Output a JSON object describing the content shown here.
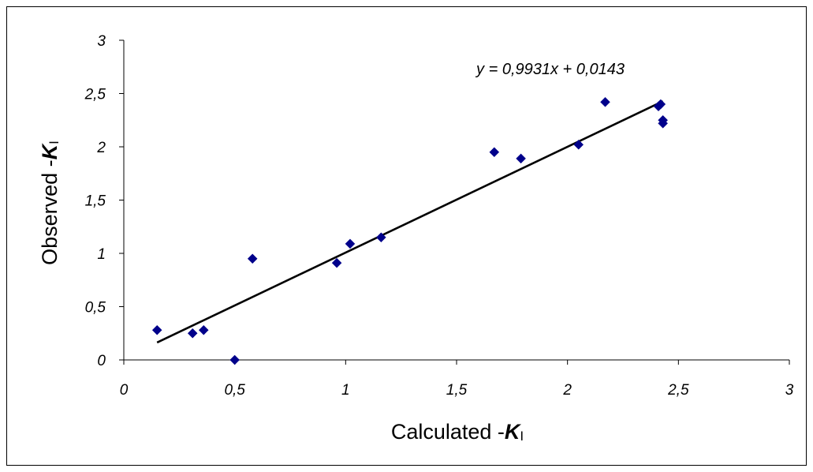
{
  "chart_data": {
    "type": "scatter",
    "xlabel": {
      "prefix": "Calculated -",
      "symbol": "K",
      "subscript": "I"
    },
    "ylabel": {
      "prefix": "Observed -",
      "symbol": "K",
      "subscript": "I"
    },
    "xlim": [
      0,
      3
    ],
    "ylim": [
      0,
      3
    ],
    "x_ticks": [
      "0",
      "0,5",
      "1",
      "1,5",
      "2",
      "2,5",
      "3"
    ],
    "y_ticks": [
      "0",
      "0,5",
      "1",
      "1,5",
      "2",
      "2,5",
      "3"
    ],
    "grid": false,
    "series": [
      {
        "marker": "diamond",
        "color": "#00008B",
        "points": [
          {
            "x": 0.15,
            "y": 0.28
          },
          {
            "x": 0.31,
            "y": 0.25
          },
          {
            "x": 0.36,
            "y": 0.28
          },
          {
            "x": 0.5,
            "y": 0.0
          },
          {
            "x": 0.58,
            "y": 0.95
          },
          {
            "x": 0.96,
            "y": 0.91
          },
          {
            "x": 1.02,
            "y": 1.09
          },
          {
            "x": 1.16,
            "y": 1.15
          },
          {
            "x": 1.67,
            "y": 1.95
          },
          {
            "x": 1.79,
            "y": 1.89
          },
          {
            "x": 2.05,
            "y": 2.02
          },
          {
            "x": 2.17,
            "y": 2.42
          },
          {
            "x": 2.41,
            "y": 2.38
          },
          {
            "x": 2.42,
            "y": 2.4
          },
          {
            "x": 2.43,
            "y": 2.25
          },
          {
            "x": 2.43,
            "y": 2.22
          }
        ]
      }
    ],
    "trendline": {
      "slope": 0.9931,
      "intercept": 0.0143,
      "x_range": [
        0.15,
        2.43
      ],
      "color": "#000000",
      "equation": "y = 0,9931x + 0,0143"
    }
  }
}
